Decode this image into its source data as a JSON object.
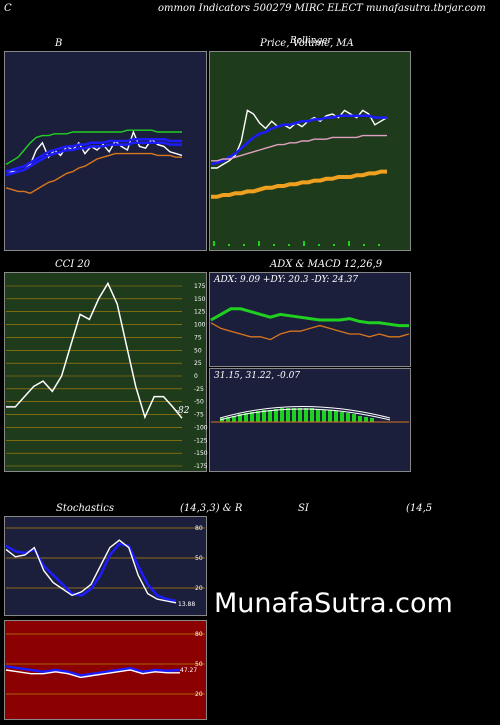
{
  "header": {
    "left_letter": "C",
    "title": "ommon  Indicators 500279 MIRC ELECT munafasutra.tbrjar.com"
  },
  "watermark": "MunafaSutra.com",
  "colors": {
    "navy": "#1c1f3c",
    "green_bg": "#1e3b1c",
    "maroon": "#8b0000",
    "blue": "#1c1cff",
    "orange": "#d8761c",
    "lime": "#20d020",
    "grid": "#b8860b"
  },
  "chart_data": [
    {
      "type": "line",
      "title": "B",
      "series": [
        {
          "name": "",
          "color": "#ffffff",
          "values": [
            58,
            58,
            58,
            59,
            62,
            70,
            74,
            66,
            70,
            67,
            72,
            70,
            74,
            68,
            72,
            70,
            73,
            69,
            75,
            72,
            70,
            80,
            72,
            71,
            76,
            73,
            72,
            69,
            68,
            67
          ]
        },
        {
          "name": "",
          "color": "#1c1cff",
          "values": [
            58,
            59,
            60,
            61,
            63,
            65,
            67,
            69,
            70,
            71,
            72,
            72,
            73,
            73,
            74,
            74,
            74,
            75,
            75,
            75,
            75,
            76,
            76,
            76,
            76,
            76,
            76,
            75,
            75,
            75
          ]
        },
        {
          "name": "",
          "color": "#1c1cff",
          "values": [
            56,
            57,
            58,
            59,
            61,
            63,
            65,
            67,
            68,
            69,
            70,
            70,
            71,
            71,
            72,
            72,
            72,
            73,
            73,
            73,
            73,
            74,
            74,
            74,
            74,
            74,
            74,
            73,
            73,
            73
          ]
        },
        {
          "name": "",
          "color": "#20d020",
          "values": [
            62,
            64,
            66,
            70,
            74,
            77,
            78,
            78,
            79,
            79,
            79,
            80,
            80,
            80,
            80,
            80,
            80,
            80,
            80,
            80,
            81,
            81,
            81,
            81,
            81,
            80,
            80,
            80,
            80,
            80
          ]
        },
        {
          "name": "",
          "color": "#d8761c",
          "values": [
            49,
            48,
            47,
            47,
            46,
            48,
            50,
            52,
            53,
            55,
            57,
            58,
            60,
            61,
            63,
            65,
            66,
            67,
            68,
            68,
            68,
            68,
            68,
            68,
            68,
            67,
            67,
            67,
            66,
            66
          ]
        }
      ]
    },
    {
      "type": "line",
      "title": "Price,  Volume, MA",
      "overlay_labels": [
        "Bollinger"
      ],
      "series": [
        {
          "name": "",
          "color": "#ffffff",
          "values": [
            60,
            60,
            62,
            64,
            67,
            75,
            92,
            90,
            85,
            82,
            86,
            83,
            84,
            82,
            85,
            83,
            86,
            88,
            86,
            89,
            90,
            88,
            92,
            90,
            88,
            92,
            90,
            84,
            86,
            88
          ]
        },
        {
          "name": "",
          "color": "#1c1cff",
          "values": [
            62,
            63,
            64,
            66,
            68,
            71,
            74,
            77,
            79,
            80,
            82,
            83,
            84,
            84,
            85,
            86,
            86,
            87,
            87,
            88,
            88,
            89,
            89,
            89,
            89,
            89,
            89,
            88,
            88,
            88
          ]
        },
        {
          "name": "",
          "color": "#e0a0c0",
          "values": [
            64,
            64,
            65,
            65,
            66,
            67,
            68,
            69,
            70,
            71,
            72,
            73,
            73,
            74,
            74,
            75,
            75,
            76,
            76,
            76,
            77,
            77,
            77,
            77,
            77,
            78,
            78,
            78,
            78,
            78
          ]
        },
        {
          "name": "",
          "color": "#f0a020",
          "values": [
            44,
            44,
            45,
            45,
            46,
            46,
            47,
            47,
            48,
            49,
            49,
            50,
            50,
            51,
            51,
            52,
            52,
            53,
            53,
            54,
            54,
            55,
            55,
            55,
            56,
            56,
            57,
            57,
            58,
            58
          ]
        }
      ]
    },
    {
      "type": "line",
      "title": "CCI 20",
      "ticks": [
        "175",
        "150",
        "125",
        "100",
        "75",
        "50",
        "25",
        "0",
        "-25",
        "-50",
        "-75",
        "-100",
        "-125",
        "-150",
        "-175"
      ],
      "last_value_label": "-82",
      "series": [
        {
          "name": "",
          "color": "#ffffff",
          "values": [
            -60,
            -60,
            -40,
            -20,
            -10,
            -30,
            0,
            60,
            120,
            110,
            150,
            180,
            140,
            60,
            -20,
            -80,
            -40,
            -40,
            -60,
            -82
          ]
        }
      ]
    },
    {
      "type": "line",
      "title": "ADX  & MACD 12,26,9",
      "adx_text": "ADX: 9.09 +DY: 20.3 -DY: 24.37",
      "macd_text": "31.15,  31.22,  -0.07",
      "series": [
        {
          "name": "",
          "color": "#20d020",
          "values": [
            30,
            34,
            38,
            38,
            36,
            34,
            32,
            34,
            33,
            32,
            31,
            30,
            30,
            30,
            31,
            29,
            28,
            28,
            27,
            26,
            26
          ]
        },
        {
          "name": "",
          "color": "#d8761c",
          "values": [
            28,
            24,
            22,
            20,
            18,
            18,
            16,
            20,
            22,
            22,
            24,
            26,
            24,
            22,
            20,
            20,
            18,
            20,
            18,
            18,
            20
          ]
        }
      ]
    },
    {
      "type": "line",
      "title": "Stochastics",
      "params": "(14,3,3) & R",
      "ticks": [
        "80",
        "50",
        "20"
      ],
      "last_value_label": "13.88",
      "series": [
        {
          "name": "",
          "color": "#1c1cff",
          "values": [
            72,
            66,
            64,
            68,
            50,
            40,
            30,
            20,
            18,
            25,
            40,
            62,
            74,
            72,
            50,
            30,
            18,
            14,
            12
          ]
        },
        {
          "name": "",
          "color": "#ffffff",
          "values": [
            68,
            60,
            62,
            70,
            45,
            32,
            25,
            18,
            22,
            30,
            50,
            70,
            78,
            70,
            40,
            20,
            14,
            12,
            10
          ]
        }
      ]
    },
    {
      "type": "line",
      "title": "SI",
      "params": "(14,5",
      "ticks": [
        "80",
        "50",
        "20"
      ],
      "last_value_label": "47.27",
      "series": [
        {
          "name": "",
          "color": "#1c1cff",
          "values": [
            54,
            52,
            50,
            48,
            50,
            48,
            44,
            46,
            48,
            50,
            52,
            48,
            50,
            49,
            50
          ]
        },
        {
          "name": "",
          "color": "#ffffff",
          "values": [
            50,
            48,
            46,
            46,
            48,
            46,
            42,
            44,
            46,
            48,
            50,
            46,
            48,
            47,
            47
          ]
        }
      ]
    }
  ]
}
